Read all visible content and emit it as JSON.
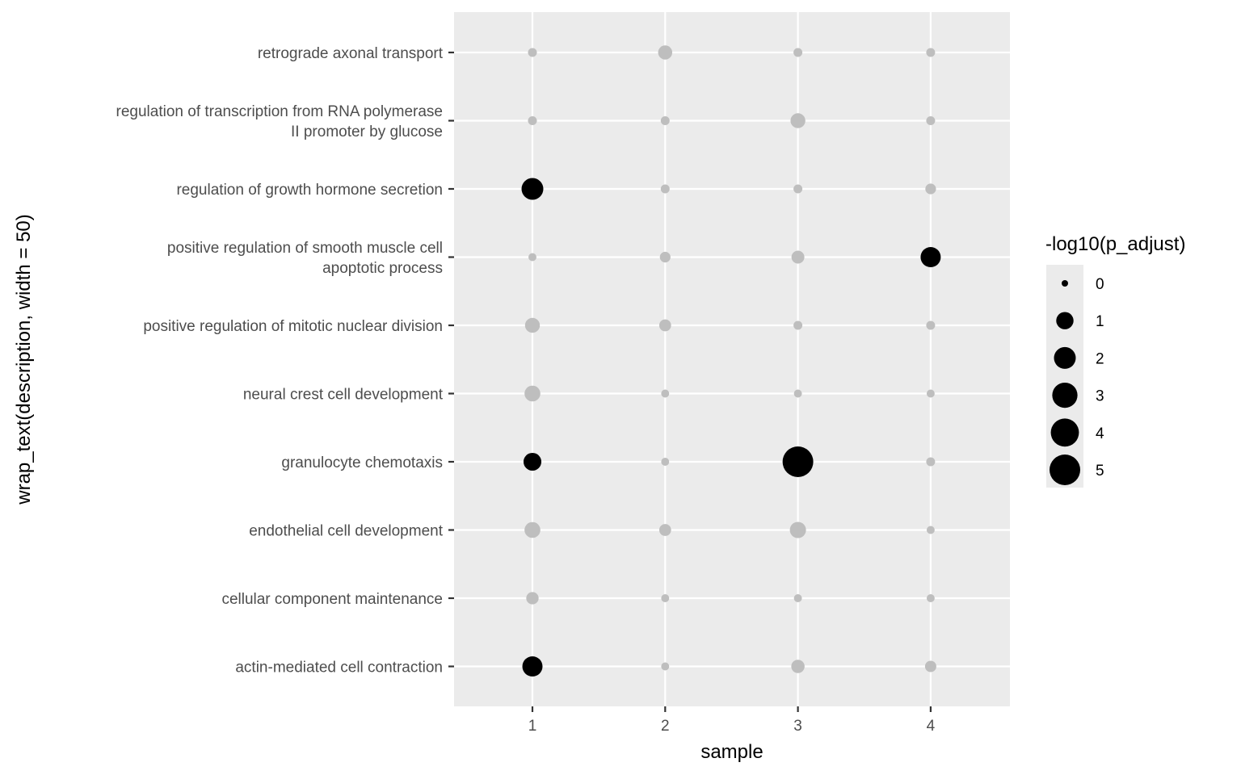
{
  "chart_data": {
    "type": "scatter",
    "subtype": "dot-plot",
    "title": "",
    "xlabel": "sample",
    "ylabel": "wrap_text(description, width = 50)",
    "x_ticks": [
      "1",
      "2",
      "3",
      "4"
    ],
    "xlim": [
      0.4,
      4.6
    ],
    "grid": true,
    "categories": [
      {
        "label": [
          "retrograde axonal transport"
        ]
      },
      {
        "label": [
          "regulation of transcription from RNA polymerase",
          "II promoter by glucose"
        ]
      },
      {
        "label": [
          "regulation of growth hormone secretion"
        ]
      },
      {
        "label": [
          "positive regulation of smooth muscle cell",
          "apoptotic process"
        ]
      },
      {
        "label": [
          "positive regulation of mitotic nuclear division"
        ]
      },
      {
        "label": [
          "neural crest cell development"
        ]
      },
      {
        "label": [
          "granulocyte chemotaxis"
        ]
      },
      {
        "label": [
          "endothelial cell development"
        ]
      },
      {
        "label": [
          "cellular component maintenance"
        ]
      },
      {
        "label": [
          "actin-mediated cell contraction"
        ]
      }
    ],
    "points": [
      {
        "row": 0,
        "sample": 1,
        "value": 0.05,
        "significant": false
      },
      {
        "row": 0,
        "sample": 2,
        "value": 0.5,
        "significant": false
      },
      {
        "row": 0,
        "sample": 3,
        "value": 0.05,
        "significant": false
      },
      {
        "row": 0,
        "sample": 4,
        "value": 0.05,
        "significant": false
      },
      {
        "row": 1,
        "sample": 1,
        "value": 0.05,
        "significant": false
      },
      {
        "row": 1,
        "sample": 2,
        "value": 0.05,
        "significant": false
      },
      {
        "row": 1,
        "sample": 3,
        "value": 0.6,
        "significant": false
      },
      {
        "row": 1,
        "sample": 4,
        "value": 0.05,
        "significant": false
      },
      {
        "row": 2,
        "sample": 1,
        "value": 2.0,
        "significant": true
      },
      {
        "row": 2,
        "sample": 2,
        "value": 0.05,
        "significant": false
      },
      {
        "row": 2,
        "sample": 3,
        "value": 0.05,
        "significant": false
      },
      {
        "row": 2,
        "sample": 4,
        "value": 0.15,
        "significant": false
      },
      {
        "row": 3,
        "sample": 1,
        "value": 0.02,
        "significant": false
      },
      {
        "row": 3,
        "sample": 2,
        "value": 0.15,
        "significant": false
      },
      {
        "row": 3,
        "sample": 3,
        "value": 0.35,
        "significant": false
      },
      {
        "row": 3,
        "sample": 4,
        "value": 1.6,
        "significant": true
      },
      {
        "row": 4,
        "sample": 1,
        "value": 0.6,
        "significant": false
      },
      {
        "row": 4,
        "sample": 2,
        "value": 0.25,
        "significant": false
      },
      {
        "row": 4,
        "sample": 3,
        "value": 0.05,
        "significant": false
      },
      {
        "row": 4,
        "sample": 4,
        "value": 0.05,
        "significant": false
      },
      {
        "row": 5,
        "sample": 1,
        "value": 0.75,
        "significant": false
      },
      {
        "row": 5,
        "sample": 2,
        "value": 0.02,
        "significant": false
      },
      {
        "row": 5,
        "sample": 3,
        "value": 0.02,
        "significant": false
      },
      {
        "row": 5,
        "sample": 4,
        "value": 0.02,
        "significant": false
      },
      {
        "row": 6,
        "sample": 1,
        "value": 1.1,
        "significant": true
      },
      {
        "row": 6,
        "sample": 2,
        "value": 0.02,
        "significant": false
      },
      {
        "row": 6,
        "sample": 3,
        "value": 5.0,
        "significant": true
      },
      {
        "row": 6,
        "sample": 4,
        "value": 0.05,
        "significant": false
      },
      {
        "row": 7,
        "sample": 1,
        "value": 0.75,
        "significant": false
      },
      {
        "row": 7,
        "sample": 2,
        "value": 0.25,
        "significant": false
      },
      {
        "row": 7,
        "sample": 3,
        "value": 0.8,
        "significant": false
      },
      {
        "row": 7,
        "sample": 4,
        "value": 0.02,
        "significant": false
      },
      {
        "row": 8,
        "sample": 1,
        "value": 0.3,
        "significant": false
      },
      {
        "row": 8,
        "sample": 2,
        "value": 0.02,
        "significant": false
      },
      {
        "row": 8,
        "sample": 3,
        "value": 0.02,
        "significant": false
      },
      {
        "row": 8,
        "sample": 4,
        "value": 0.02,
        "significant": false
      },
      {
        "row": 9,
        "sample": 1,
        "value": 1.6,
        "significant": true
      },
      {
        "row": 9,
        "sample": 2,
        "value": 0.02,
        "significant": false
      },
      {
        "row": 9,
        "sample": 3,
        "value": 0.4,
        "significant": false
      },
      {
        "row": 9,
        "sample": 4,
        "value": 0.2,
        "significant": false
      }
    ],
    "legend": {
      "title": "-log10(p_adjust)",
      "position": "right",
      "entries": [
        {
          "label": "0",
          "value": 0
        },
        {
          "label": "1",
          "value": 1
        },
        {
          "label": "2",
          "value": 2
        },
        {
          "label": "3",
          "value": 3
        },
        {
          "label": "4",
          "value": 4
        },
        {
          "label": "5",
          "value": 5
        }
      ]
    },
    "colors": {
      "significant": "#000000",
      "not_significant": "#bebebe",
      "panel_bg": "#ebebeb",
      "grid": "#ffffff",
      "tick_text": "#4d4d4d"
    }
  }
}
